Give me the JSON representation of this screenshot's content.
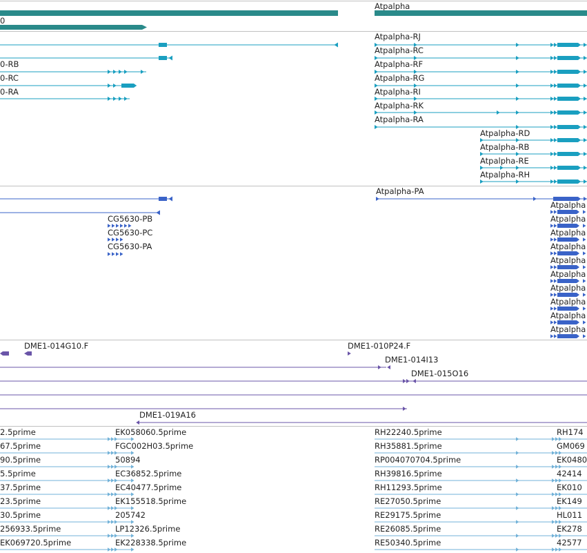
{
  "colors": {
    "gene": "#2a8a8a",
    "transcript": "#1a9fc0",
    "protein": "#3a63c8",
    "clone": "#6a55a8",
    "est": "#72b2d8",
    "divider": "#c0c0c0"
  },
  "genes": [
    {
      "label": "0"
    },
    {
      "label": "Atpalpha"
    }
  ],
  "transcripts": [
    {
      "label": "0-RB"
    },
    {
      "label": "0-RC"
    },
    {
      "label": "0-RA"
    },
    {
      "label": "Atpalpha-RJ"
    },
    {
      "label": "Atpalpha-RC"
    },
    {
      "label": "Atpalpha-RF"
    },
    {
      "label": "Atpalpha-RG"
    },
    {
      "label": "Atpalpha-RI"
    },
    {
      "label": "Atpalpha-RK"
    },
    {
      "label": "Atpalpha-RA"
    },
    {
      "label": "Atpalpha-RD"
    },
    {
      "label": "Atpalpha-RB"
    },
    {
      "label": "Atpalpha-RE"
    },
    {
      "label": "Atpalpha-RH"
    }
  ],
  "proteins": [
    {
      "label": "CG5630-PB"
    },
    {
      "label": "CG5630-PC"
    },
    {
      "label": "CG5630-PA"
    },
    {
      "label": "Atpalpha-PA"
    },
    {
      "label": "Atpalpha"
    },
    {
      "label": "Atpalpha"
    },
    {
      "label": "Atpalpha"
    },
    {
      "label": "Atpalpha"
    },
    {
      "label": "Atpalpha"
    },
    {
      "label": "Atpalpha"
    },
    {
      "label": "Atpalpha"
    },
    {
      "label": "Atpalpha"
    },
    {
      "label": "Atpalpha"
    },
    {
      "label": "Atpalpha"
    }
  ],
  "clones": [
    {
      "label": "DME1-014G10.F"
    },
    {
      "label": "DME1-010P24.F"
    },
    {
      "label": "DME1-014I13"
    },
    {
      "label": "DME1-015O16"
    },
    {
      "label": "DME1-019A16"
    }
  ],
  "ests": [
    {
      "label": "2.5prime"
    },
    {
      "label": "EK058060.5prime"
    },
    {
      "label": "RH22240.5prime"
    },
    {
      "label": "RH174"
    },
    {
      "label": "67.5prime"
    },
    {
      "label": "FGC002H03.5prime"
    },
    {
      "label": "RH35881.5prime"
    },
    {
      "label": "GM069"
    },
    {
      "label": "90.5prime"
    },
    {
      "label": "50894"
    },
    {
      "label": "RP004070704.5prime"
    },
    {
      "label": "EK0480"
    },
    {
      "label": "5.5prime"
    },
    {
      "label": "EC36852.5prime"
    },
    {
      "label": "RH39816.5prime"
    },
    {
      "label": "42414"
    },
    {
      "label": "37.5prime"
    },
    {
      "label": "EC40477.5prime"
    },
    {
      "label": "RH11293.5prime"
    },
    {
      "label": "EK010"
    },
    {
      "label": "23.5prime"
    },
    {
      "label": "EK155518.5prime"
    },
    {
      "label": "RE27050.5prime"
    },
    {
      "label": "EK149"
    },
    {
      "label": "30.5prime"
    },
    {
      "label": "205742"
    },
    {
      "label": "RE29175.5prime"
    },
    {
      "label": "HL011"
    },
    {
      "label": "256933.5prime"
    },
    {
      "label": "LP12326.5prime"
    },
    {
      "label": "RE26085.5prime"
    },
    {
      "label": "EK278"
    },
    {
      "label": "EK069720.5prime"
    },
    {
      "label": "EK228338.5prime"
    },
    {
      "label": "RE50340.5prime"
    },
    {
      "label": "42577"
    }
  ]
}
